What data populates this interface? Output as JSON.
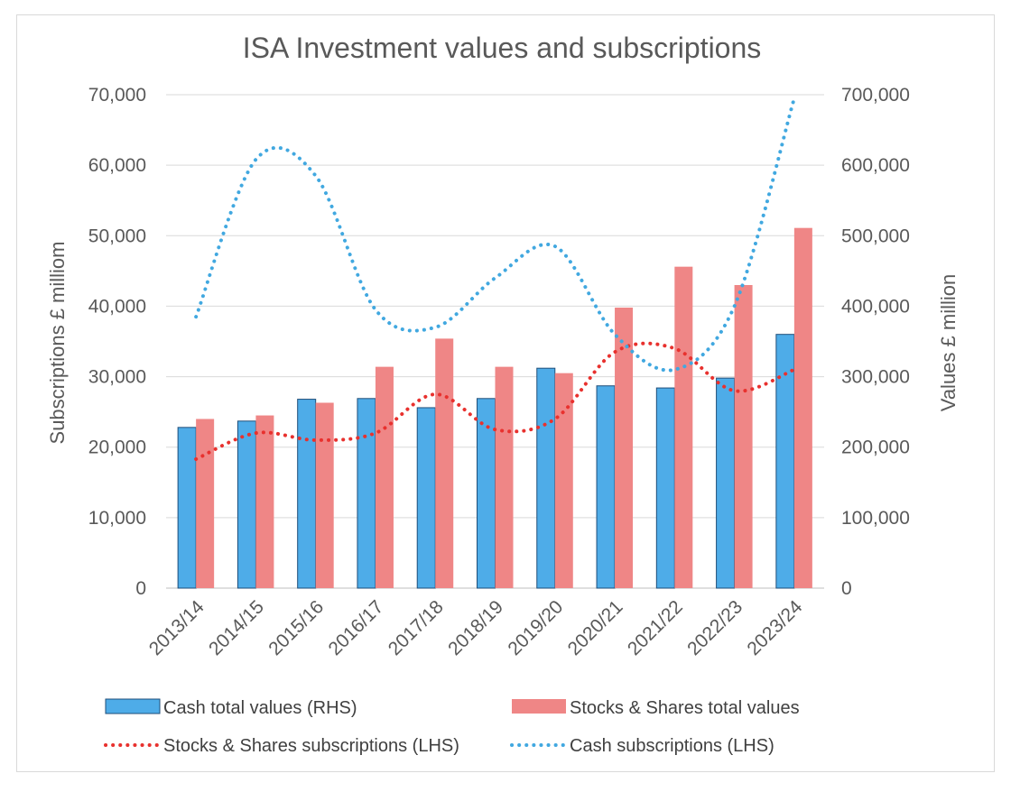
{
  "chart_data": {
    "type": "bar",
    "title": "ISA Investment values and subscriptions",
    "categories": [
      "2013/14",
      "2014/15",
      "2015/16",
      "2016/17",
      "2017/18",
      "2018/19",
      "2019/20",
      "2020/21",
      "2021/22",
      "2022/23",
      "2023/24"
    ],
    "left_axis": {
      "label": "Subscriptions £ milliom",
      "range": [
        0,
        70000
      ],
      "ticks": [
        "0",
        "10,000",
        "20,000",
        "30,000",
        "40,000",
        "50,000",
        "60,000",
        "70,000"
      ]
    },
    "right_axis": {
      "label": "Values £ million",
      "range": [
        0,
        700000
      ],
      "ticks": [
        "0",
        "100,000",
        "200,000",
        "300,000",
        "400,000",
        "500,000",
        "600,000",
        "700,000"
      ]
    },
    "grid": true,
    "legend_position": "bottom",
    "series": [
      {
        "name": "Cash total values (RHS)",
        "kind": "bar",
        "axis": "right",
        "color": "#4EACE8",
        "values": [
          228000,
          237000,
          268000,
          269000,
          256000,
          269000,
          312000,
          287000,
          284000,
          298000,
          360000
        ]
      },
      {
        "name": "Stocks & Shares total values",
        "kind": "bar",
        "axis": "right",
        "color": "#EF8686",
        "values": [
          240000,
          245000,
          263000,
          314000,
          354000,
          314000,
          305000,
          398000,
          456000,
          430000,
          511000
        ]
      },
      {
        "name": "Stocks & Shares subscriptions (LHS)",
        "kind": "line",
        "style": "dotted",
        "axis": "left",
        "color": "#E8312E",
        "values": [
          18300,
          22000,
          21000,
          22000,
          27500,
          22500,
          24000,
          33500,
          34000,
          28000,
          31000
        ]
      },
      {
        "name": "Cash subscriptions (LHS)",
        "kind": "line",
        "style": "dotted",
        "axis": "left",
        "color": "#41A8E0",
        "values": [
          38500,
          60800,
          58500,
          39500,
          37000,
          44000,
          48500,
          36000,
          31000,
          40000,
          69500
        ]
      }
    ]
  }
}
